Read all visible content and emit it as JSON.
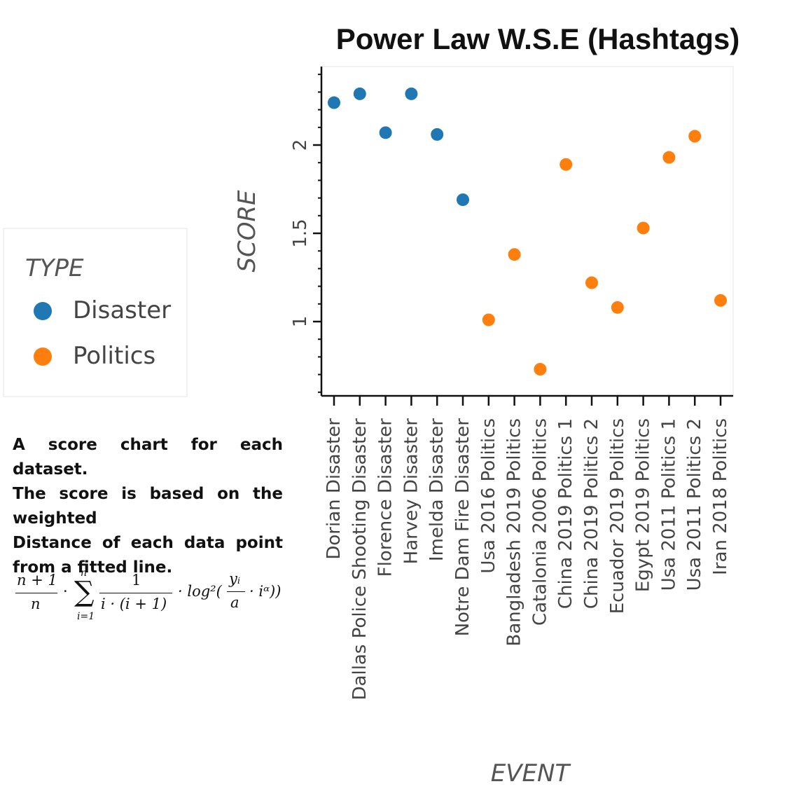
{
  "chart_data": {
    "type": "scatter",
    "title": "Power Law W.S.E (Hashtags)",
    "xlabel": "EVENT",
    "ylabel": "SCORE",
    "ylim": [
      0.6,
      2.45
    ],
    "yticks": [
      {
        "value": 1,
        "label": "1"
      },
      {
        "value": 1.5,
        "label": "1.5"
      },
      {
        "value": 2,
        "label": "2"
      }
    ],
    "categories": [
      "Dorian Disaster",
      "Dallas Police Shooting Disaster",
      "Florence Disaster",
      "Harvey Disaster",
      "Imelda Disaster",
      "Notre Dam Fire Disaster",
      "Usa 2016 Politics",
      "Bangladesh 2019 Politics",
      "Catalonia 2006 Politics",
      "China 2019 Politics 1",
      "China 2019 Politics 2",
      "Ecuador 2019 Politics",
      "Egypt 2019 Politics",
      "Usa 2011 Politics 1",
      "Usa 2011 Politics 2",
      "Iran 2018 Politics"
    ],
    "legend": {
      "title": "TYPE",
      "position": "left"
    },
    "grid": false,
    "series": [
      {
        "name": "Disaster",
        "color": "#1f77b4",
        "points": [
          {
            "x": "Dorian Disaster",
            "y": 2.24
          },
          {
            "x": "Dallas Police Shooting Disaster",
            "y": 2.29
          },
          {
            "x": "Florence Disaster",
            "y": 2.07
          },
          {
            "x": "Harvey Disaster",
            "y": 2.29
          },
          {
            "x": "Imelda Disaster",
            "y": 2.06
          },
          {
            "x": "Notre Dam Fire Disaster",
            "y": 1.69
          }
        ]
      },
      {
        "name": "Politics",
        "color": "#ff7f0e",
        "points": [
          {
            "x": "Usa 2016 Politics",
            "y": 1.01
          },
          {
            "x": "Bangladesh 2019 Politics",
            "y": 1.38
          },
          {
            "x": "Catalonia 2006 Politics",
            "y": 0.73
          },
          {
            "x": "China 2019 Politics 1",
            "y": 1.89
          },
          {
            "x": "China 2019 Politics 2",
            "y": 1.22
          },
          {
            "x": "Ecuador 2019 Politics",
            "y": 1.08
          },
          {
            "x": "Egypt 2019 Politics",
            "y": 1.53
          },
          {
            "x": "Usa 2011 Politics 1",
            "y": 1.93
          },
          {
            "x": "Usa 2011 Politics 2",
            "y": 2.05
          },
          {
            "x": "Iran 2018 Politics",
            "y": 1.12
          }
        ]
      }
    ]
  },
  "description": {
    "line1": "A score chart for each dataset.",
    "line2": "The score is based on the weighted",
    "line3": "Distance of each data point from a fitted line."
  },
  "formula": {
    "frac1_num": "n + 1",
    "frac1_den": "n",
    "dot1": "·",
    "sum_symbol": "∑",
    "sum_upper": "n",
    "sum_lower": "i=1",
    "frac2_num": "1",
    "frac2_den": "i · (i + 1)",
    "log_prefix": "· log²(",
    "frac3_num": "yᵢ",
    "frac3_den": "a",
    "log_suffix": "· iᵅ))"
  }
}
